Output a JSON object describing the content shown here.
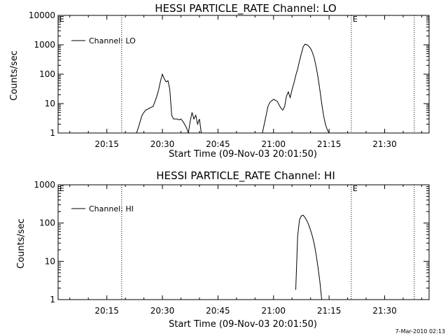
{
  "footer": {
    "timestamp": "7-Mar-2010 02:13"
  },
  "chart_data": [
    {
      "type": "line",
      "title": "HESSI PARTICLE_RATE Channel: LO",
      "xlabel": "Start Time (09-Nov-03 20:01:50)",
      "ylabel": "Counts/sec",
      "yscale": "log",
      "ylim": [
        1,
        10000
      ],
      "xlim": [
        "20:01:50",
        "21:42:00"
      ],
      "xticks": [
        "20:15",
        "20:30",
        "20:45",
        "21:00",
        "21:15",
        "21:30"
      ],
      "yticks": [
        "1",
        "10",
        "100",
        "1000",
        "10000"
      ],
      "legend": {
        "position": "top-left",
        "entries": [
          "Channel: LO"
        ]
      },
      "markers": [
        {
          "time": "20:19:00",
          "label": ""
        },
        {
          "time": "21:21:00",
          "label": "E"
        },
        {
          "time": "21:38:00",
          "label": ""
        }
      ],
      "corner_marker": "E",
      "series": [
        {
          "name": "Channel: LO",
          "segments": [
            [
              [
                "20:23:00",
                1.0
              ],
              [
                "20:23:30",
                1.5
              ],
              [
                "20:24:00",
                2.5
              ],
              [
                "20:24:30",
                4
              ],
              [
                "20:25:00",
                5
              ],
              [
                "20:25:30",
                6
              ],
              [
                "20:26:00",
                6.5
              ],
              [
                "20:26:30",
                7
              ],
              [
                "20:27:00",
                7.5
              ],
              [
                "20:27:30",
                8
              ],
              [
                "20:28:00",
                12
              ],
              [
                "20:28:30",
                18
              ],
              [
                "20:29:00",
                30
              ],
              [
                "20:29:30",
                60
              ],
              [
                "20:30:00",
                100
              ],
              [
                "20:30:30",
                70
              ],
              [
                "20:31:00",
                55
              ],
              [
                "20:31:30",
                60
              ],
              [
                "20:32:00",
                30
              ],
              [
                "20:32:30",
                4
              ],
              [
                "20:33:00",
                3
              ],
              [
                "20:33:30",
                3
              ],
              [
                "20:34:00",
                3
              ],
              [
                "20:34:30",
                2.8
              ],
              [
                "20:35:00",
                3
              ],
              [
                "20:35:30",
                2.5
              ],
              [
                "20:36:00",
                2
              ],
              [
                "20:36:30",
                1.5
              ],
              [
                "20:37:00",
                1.0
              ]
            ],
            [
              [
                "20:37:00",
                1.0
              ],
              [
                "20:37:30",
                2.5
              ],
              [
                "20:38:00",
                5
              ],
              [
                "20:38:30",
                3
              ],
              [
                "20:39:00",
                4
              ],
              [
                "20:39:30",
                2
              ],
              [
                "20:40:00",
                3
              ],
              [
                "20:40:30",
                1.0
              ]
            ],
            [
              [
                "20:57:00",
                1.0
              ],
              [
                "20:57:30",
                2
              ],
              [
                "20:58:00",
                4
              ],
              [
                "20:58:30",
                8
              ],
              [
                "20:59:00",
                11
              ],
              [
                "21:00:00",
                14
              ],
              [
                "21:01:00",
                12
              ],
              [
                "21:01:30",
                9
              ],
              [
                "21:02:00",
                7
              ],
              [
                "21:02:30",
                6
              ],
              [
                "21:03:00",
                8
              ],
              [
                "21:03:30",
                18
              ],
              [
                "21:04:00",
                25
              ],
              [
                "21:04:30",
                16
              ],
              [
                "21:05:00",
                30
              ],
              [
                "21:05:30",
                50
              ],
              [
                "21:06:00",
                90
              ],
              [
                "21:06:30",
                150
              ],
              [
                "21:07:00",
                280
              ],
              [
                "21:07:30",
                500
              ],
              [
                "21:08:00",
                850
              ],
              [
                "21:08:30",
                1050
              ],
              [
                "21:09:00",
                1000
              ],
              [
                "21:09:30",
                900
              ],
              [
                "21:10:00",
                750
              ],
              [
                "21:10:30",
                550
              ],
              [
                "21:11:00",
                350
              ],
              [
                "21:11:30",
                180
              ],
              [
                "21:12:00",
                80
              ],
              [
                "21:12:30",
                30
              ],
              [
                "21:13:00",
                10
              ],
              [
                "21:13:30",
                4
              ],
              [
                "21:14:00",
                2
              ],
              [
                "21:14:30",
                1.3
              ],
              [
                "21:15:00",
                1.0
              ]
            ]
          ]
        }
      ]
    },
    {
      "type": "line",
      "title": "HESSI PARTICLE_RATE Channel: HI",
      "xlabel": "Start Time (09-Nov-03 20:01:50)",
      "ylabel": "Counts/sec",
      "yscale": "log",
      "ylim": [
        1,
        1000
      ],
      "xlim": [
        "20:01:50",
        "21:42:00"
      ],
      "xticks": [
        "20:15",
        "20:30",
        "20:45",
        "21:00",
        "21:15",
        "21:30"
      ],
      "yticks": [
        "1",
        "10",
        "100",
        "1000"
      ],
      "legend": {
        "position": "top-left",
        "entries": [
          "Channel: HI"
        ]
      },
      "markers": [
        {
          "time": "20:19:00",
          "label": ""
        },
        {
          "time": "21:21:00",
          "label": "E"
        },
        {
          "time": "21:38:00",
          "label": ""
        }
      ],
      "corner_marker": "E",
      "series": [
        {
          "name": "Channel: HI",
          "segments": [
            [
              [
                "21:06:00",
                1.8
              ],
              [
                "21:06:30",
                45
              ],
              [
                "21:07:00",
                120
              ],
              [
                "21:07:30",
                155
              ],
              [
                "21:08:00",
                160
              ],
              [
                "21:08:30",
                140
              ],
              [
                "21:09:00",
                115
              ],
              [
                "21:09:30",
                90
              ],
              [
                "21:10:00",
                65
              ],
              [
                "21:10:30",
                45
              ],
              [
                "21:11:00",
                28
              ],
              [
                "21:11:30",
                15
              ],
              [
                "21:12:00",
                7
              ],
              [
                "21:12:30",
                3
              ],
              [
                "21:13:00",
                1.0
              ]
            ]
          ]
        }
      ]
    }
  ]
}
